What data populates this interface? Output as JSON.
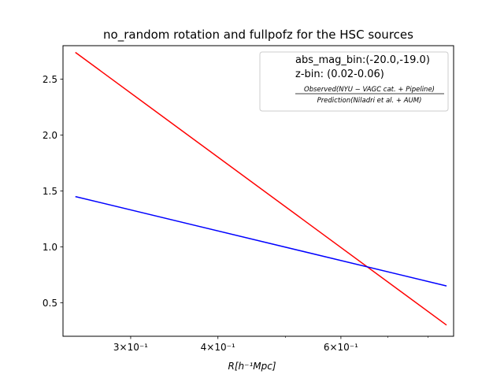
{
  "chart_data": {
    "type": "line",
    "title": "no_random rotation and fullpofz for the HSC sources",
    "xlabel": "R[h⁻¹Mpc]",
    "ylabel": "",
    "xscale": "log",
    "xlim": [
      0.24,
      0.87
    ],
    "ylim": [
      0.2,
      2.8
    ],
    "x_major_ticks": [
      {
        "value": 0.3,
        "label": "3×10⁻¹"
      },
      {
        "value": 0.4,
        "label": "4×10⁻¹"
      },
      {
        "value": 0.6,
        "label": "6×10⁻¹"
      }
    ],
    "x_minor_ticks": [
      0.5,
      0.7,
      0.8
    ],
    "y_ticks": [
      0.5,
      1.0,
      1.5,
      2.0,
      2.5
    ],
    "y_tick_labels": [
      "0.5",
      "1.0",
      "1.5",
      "2.0",
      "2.5"
    ],
    "series": [
      {
        "color": "#ff0000",
        "x": [
          0.25,
          0.85
        ],
        "y": [
          2.74,
          0.3
        ]
      },
      {
        "color": "#0000ff",
        "x": [
          0.25,
          0.85
        ],
        "y": [
          1.45,
          0.65
        ]
      }
    ],
    "legend": {
      "position": "upper right",
      "lines": [
        "abs_mag_bin:(-20.0,-19.0)",
        "z-bin: (0.02-0.06)"
      ],
      "fraction_numerator": "Observed(NYU − VAGC cat. + Pipeline)",
      "fraction_denominator": "Prediction(Niladri et al. + AUM)"
    },
    "grid": false
  }
}
